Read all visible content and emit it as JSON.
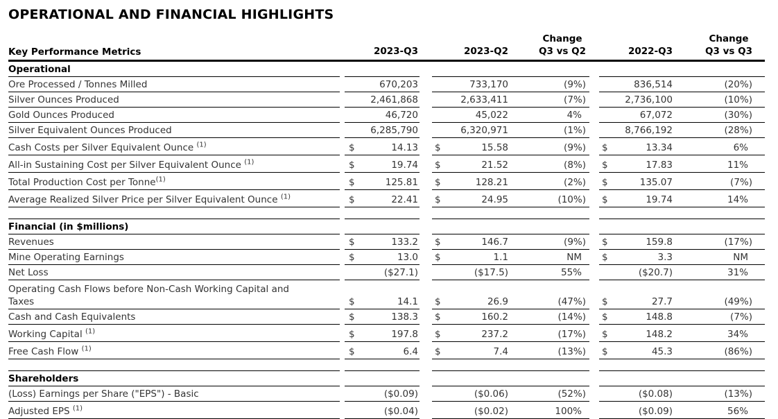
{
  "page_title": "OPERATIONAL AND FINANCIAL HIGHLIGHTS",
  "table": {
    "header": {
      "metrics_label": "Key Performance Metrics",
      "col_2023_q3": "2023-Q3",
      "col_2023_q2": "2023-Q2",
      "col_change_q3_vs_q2": "Change\nQ3 vs Q2",
      "col_2022_q3": "2022-Q3",
      "col_change_q3_vs_q3": "Change\nQ3 vs Q3"
    },
    "rows": [
      {
        "type": "section",
        "label": "Operational"
      },
      {
        "type": "data",
        "label": "Ore Processed / Tonnes Milled",
        "q3_2023": "670,203",
        "q2_2023": "733,170",
        "chg_q3_vs_q2": "(9%)",
        "q3_2022": "836,514",
        "chg_q3_vs_q3": "(20%)"
      },
      {
        "type": "data",
        "label": "Silver Ounces Produced",
        "q3_2023": "2,461,868",
        "q2_2023": "2,633,411",
        "chg_q3_vs_q2": "(7%)",
        "q3_2022": "2,736,100",
        "chg_q3_vs_q3": "(10%)"
      },
      {
        "type": "data",
        "label": "Gold Ounces Produced",
        "q3_2023": "46,720",
        "q2_2023": "45,022",
        "chg_q3_vs_q2": "4%",
        "q3_2022": "67,072",
        "chg_q3_vs_q3": "(30%)"
      },
      {
        "type": "data",
        "label": "Silver Equivalent Ounces Produced",
        "q3_2023": "6,285,790",
        "q2_2023": "6,320,971",
        "chg_q3_vs_q2": "(1%)",
        "q3_2022": "8,766,192",
        "chg_q3_vs_q3": "(28%)"
      },
      {
        "type": "data",
        "label": "Cash Costs per Silver Equivalent Ounce ",
        "sup": "(1)",
        "q3_2023_dollar": "$",
        "q3_2023": "14.13",
        "q2_2023_dollar": "$",
        "q2_2023": "15.58",
        "chg_q3_vs_q2": "(9%)",
        "q3_2022_dollar": "$",
        "q3_2022": "13.34",
        "chg_q3_vs_q3": "6%"
      },
      {
        "type": "data",
        "label": "All-in Sustaining Cost per Silver Equivalent Ounce ",
        "sup": "(1)",
        "q3_2023_dollar": "$",
        "q3_2023": "19.74",
        "q2_2023_dollar": "$",
        "q2_2023": "21.52",
        "chg_q3_vs_q2": "(8%)",
        "q3_2022_dollar": "$",
        "q3_2022": "17.83",
        "chg_q3_vs_q3": "11%"
      },
      {
        "type": "data",
        "label": "Total Production Cost per Tonne",
        "sup": "(1)",
        "q3_2023_dollar": "$",
        "q3_2023": "125.81",
        "q2_2023_dollar": "$",
        "q2_2023": "128.21",
        "chg_q3_vs_q2": "(2%)",
        "q3_2022_dollar": "$",
        "q3_2022": "135.07",
        "chg_q3_vs_q3": "(7%)"
      },
      {
        "type": "data",
        "label": "Average Realized Silver Price per Silver Equivalent Ounce ",
        "sup": "(1)",
        "q3_2023_dollar": "$",
        "q3_2023": "22.41",
        "q2_2023_dollar": "$",
        "q2_2023": "24.95",
        "chg_q3_vs_q2": "(10%)",
        "q3_2022_dollar": "$",
        "q3_2022": "19.74",
        "chg_q3_vs_q3": "14%"
      },
      {
        "type": "spacer"
      },
      {
        "type": "section",
        "label": "Financial (in $millions)"
      },
      {
        "type": "data",
        "label": "Revenues",
        "q3_2023_dollar": "$",
        "q3_2023": "133.2",
        "q2_2023_dollar": "$",
        "q2_2023": "146.7",
        "chg_q3_vs_q2": "(9%)",
        "q3_2022_dollar": "$",
        "q3_2022": "159.8",
        "chg_q3_vs_q3": "(17%)"
      },
      {
        "type": "data",
        "label": "Mine Operating Earnings",
        "q3_2023_dollar": "$",
        "q3_2023": "13.0",
        "q2_2023_dollar": "$",
        "q2_2023": "1.1",
        "chg_q3_vs_q2": "NM",
        "q3_2022_dollar": "$",
        "q3_2022": "3.3",
        "chg_q3_vs_q3": "NM"
      },
      {
        "type": "data",
        "label": "Net Loss",
        "q3_2023": "($27.1)",
        "q2_2023": "($17.5)",
        "chg_q3_vs_q2": "55%",
        "q3_2022": "($20.7)",
        "chg_q3_vs_q3": "31%"
      },
      {
        "type": "data",
        "tall": true,
        "label": "Operating Cash Flows before Non-Cash Working Capital and\nTaxes",
        "q3_2023_dollar": "$",
        "q3_2023": "14.1",
        "q2_2023_dollar": "$",
        "q2_2023": "26.9",
        "chg_q3_vs_q2": "(47%)",
        "q3_2022_dollar": "$",
        "q3_2022": "27.7",
        "chg_q3_vs_q3": "(49%)"
      },
      {
        "type": "data",
        "label": "Cash and Cash Equivalents",
        "q3_2023_dollar": "$",
        "q3_2023": "138.3",
        "q2_2023_dollar": "$",
        "q2_2023": "160.2",
        "chg_q3_vs_q2": "(14%)",
        "q3_2022_dollar": "$",
        "q3_2022": "148.8",
        "chg_q3_vs_q3": "(7%)"
      },
      {
        "type": "data",
        "label": "Working Capital ",
        "sup": "(1)",
        "q3_2023_dollar": "$",
        "q3_2023": "197.8",
        "q2_2023_dollar": "$",
        "q2_2023": "237.2",
        "chg_q3_vs_q2": "(17%)",
        "q3_2022_dollar": "$",
        "q3_2022": "148.2",
        "chg_q3_vs_q3": "34%"
      },
      {
        "type": "data",
        "label": "Free Cash Flow ",
        "sup": "(1)",
        "q3_2023_dollar": "$",
        "q3_2023": "6.4",
        "q2_2023_dollar": "$",
        "q2_2023": "7.4",
        "chg_q3_vs_q2": "(13%)",
        "q3_2022_dollar": "$",
        "q3_2022": "45.3",
        "chg_q3_vs_q3": "(86%)"
      },
      {
        "type": "spacer"
      },
      {
        "type": "section",
        "label": "Shareholders"
      },
      {
        "type": "data",
        "label": "(Loss) Earnings per Share (\"EPS\") - Basic",
        "q3_2023": "($0.09)",
        "q2_2023": "($0.06)",
        "chg_q3_vs_q2": "(52%)",
        "q3_2022": "($0.08)",
        "chg_q3_vs_q3": "(13%)"
      },
      {
        "type": "data",
        "sup": "(1)",
        "label": "Adjusted EPS ",
        "q3_2023": "($0.04)",
        "q2_2023": "($0.02)",
        "chg_q3_vs_q2": "100%",
        "q3_2022": "($0.09)",
        "chg_q3_vs_q3": "56%"
      }
    ]
  }
}
